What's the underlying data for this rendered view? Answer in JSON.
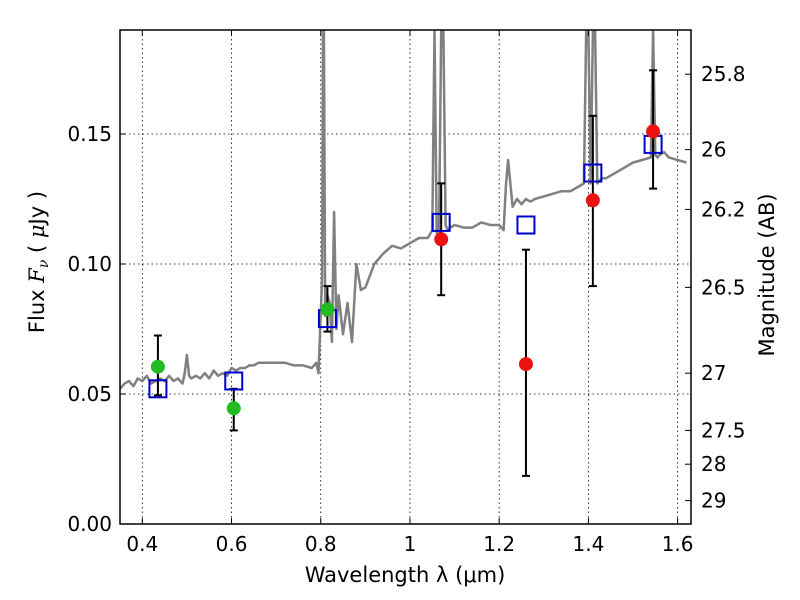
{
  "chart_data": {
    "type": "scatter",
    "xlabel": "Wavelength  λ (μm)",
    "ylabel_left": "Flux  F_ν  ( μJy )",
    "ylabel_right": "Magnitude (AB)",
    "xlim": [
      0.35,
      1.63
    ],
    "ylim": [
      0.0,
      0.19
    ],
    "grid": true,
    "x_ticks": [
      0.4,
      0.6,
      0.8,
      1.0,
      1.2,
      1.4,
      1.6
    ],
    "x_tick_labels": [
      "0.4",
      "0.6",
      "0.8",
      "1",
      "1.2",
      "1.4",
      "1.6"
    ],
    "y_ticks": [
      0.0,
      0.05,
      0.1,
      0.15
    ],
    "y_tick_labels": [
      "0.00",
      "0.05",
      "0.10",
      "0.15"
    ],
    "right_ticks": [
      {
        "flux": 0.173,
        "label": "25.8"
      },
      {
        "flux": 0.144,
        "label": "26"
      },
      {
        "flux": 0.121,
        "label": "26.2"
      },
      {
        "flux": 0.091,
        "label": "26.5"
      },
      {
        "flux": 0.058,
        "label": "27"
      },
      {
        "flux": 0.036,
        "label": "27.5"
      },
      {
        "flux": 0.023,
        "label": "28"
      },
      {
        "flux": 0.009,
        "label": "29"
      }
    ],
    "model_spectrum": {
      "color": "#808080",
      "x": [
        0.35,
        0.36,
        0.37,
        0.38,
        0.39,
        0.4,
        0.41,
        0.42,
        0.43,
        0.44,
        0.45,
        0.46,
        0.47,
        0.48,
        0.49,
        0.495,
        0.5,
        0.505,
        0.51,
        0.52,
        0.53,
        0.54,
        0.55,
        0.56,
        0.57,
        0.58,
        0.59,
        0.6,
        0.61,
        0.62,
        0.63,
        0.64,
        0.65,
        0.66,
        0.68,
        0.7,
        0.72,
        0.74,
        0.76,
        0.78,
        0.79,
        0.795,
        0.8,
        0.803,
        0.805,
        0.807,
        0.81,
        0.815,
        0.82,
        0.825,
        0.83,
        0.835,
        0.84,
        0.85,
        0.86,
        0.87,
        0.88,
        0.89,
        0.9,
        0.92,
        0.94,
        0.96,
        0.98,
        1.0,
        1.02,
        1.04,
        1.05,
        1.055,
        1.06,
        1.065,
        1.07,
        1.075,
        1.08,
        1.085,
        1.09,
        1.1,
        1.12,
        1.14,
        1.16,
        1.18,
        1.2,
        1.21,
        1.215,
        1.22,
        1.23,
        1.24,
        1.25,
        1.26,
        1.27,
        1.28,
        1.3,
        1.32,
        1.34,
        1.36,
        1.38,
        1.39,
        1.395,
        1.4,
        1.405,
        1.41,
        1.415,
        1.42,
        1.43,
        1.44,
        1.45,
        1.46,
        1.47,
        1.48,
        1.5,
        1.52,
        1.54,
        1.545,
        1.55,
        1.555,
        1.56,
        1.57,
        1.58,
        1.6,
        1.62
      ],
      "y": [
        0.052,
        0.054,
        0.055,
        0.053,
        0.056,
        0.055,
        0.057,
        0.054,
        0.055,
        0.056,
        0.055,
        0.057,
        0.055,
        0.056,
        0.054,
        0.058,
        0.065,
        0.057,
        0.056,
        0.057,
        0.056,
        0.058,
        0.056,
        0.059,
        0.057,
        0.058,
        0.057,
        0.06,
        0.059,
        0.06,
        0.06,
        0.061,
        0.061,
        0.062,
        0.062,
        0.062,
        0.062,
        0.061,
        0.061,
        0.06,
        0.062,
        0.058,
        0.08,
        0.095,
        0.19,
        0.19,
        0.08,
        0.088,
        0.085,
        0.07,
        0.12,
        0.075,
        0.088,
        0.073,
        0.085,
        0.07,
        0.1,
        0.09,
        0.091,
        0.1,
        0.104,
        0.107,
        0.106,
        0.108,
        0.11,
        0.11,
        0.113,
        0.19,
        0.112,
        0.112,
        0.19,
        0.19,
        0.115,
        0.113,
        0.114,
        0.115,
        0.114,
        0.114,
        0.116,
        0.115,
        0.115,
        0.113,
        0.13,
        0.14,
        0.122,
        0.125,
        0.123,
        0.125,
        0.124,
        0.125,
        0.126,
        0.127,
        0.128,
        0.128,
        0.13,
        0.131,
        0.19,
        0.19,
        0.131,
        0.19,
        0.19,
        0.131,
        0.133,
        0.133,
        0.134,
        0.135,
        0.136,
        0.137,
        0.139,
        0.14,
        0.141,
        0.19,
        0.142,
        0.141,
        0.142,
        0.143,
        0.141,
        0.14,
        0.139
      ]
    },
    "series": [
      {
        "marker": "square",
        "color": "#0000cc",
        "points": [
          {
            "x": 0.435,
            "y": 0.052
          },
          {
            "x": 0.605,
            "y": 0.055
          },
          {
            "x": 0.815,
            "y": 0.079
          },
          {
            "x": 1.07,
            "y": 0.116
          },
          {
            "x": 1.26,
            "y": 0.115
          },
          {
            "x": 1.41,
            "y": 0.135
          },
          {
            "x": 1.545,
            "y": 0.146
          }
        ]
      },
      {
        "marker": "circle",
        "color": "#22bb22",
        "points": [
          {
            "x": 0.435,
            "y": 0.0605,
            "yerr_low": 0.0495,
            "yerr_high": 0.0725
          },
          {
            "x": 0.605,
            "y": 0.0445,
            "yerr_low": 0.036,
            "yerr_high": 0.052
          },
          {
            "x": 0.815,
            "y": 0.0825,
            "yerr_low": 0.074,
            "yerr_high": 0.0915
          }
        ]
      },
      {
        "marker": "circle",
        "color": "#ee1111",
        "points": [
          {
            "x": 1.07,
            "y": 0.1095,
            "yerr_low": 0.088,
            "yerr_high": 0.131
          },
          {
            "x": 1.26,
            "y": 0.0615,
            "yerr_low": 0.0185,
            "yerr_high": 0.1055
          },
          {
            "x": 1.41,
            "y": 0.1245,
            "yerr_low": 0.0915,
            "yerr_high": 0.157
          },
          {
            "x": 1.545,
            "y": 0.151,
            "yerr_low": 0.129,
            "yerr_high": 0.1745
          }
        ]
      }
    ]
  }
}
